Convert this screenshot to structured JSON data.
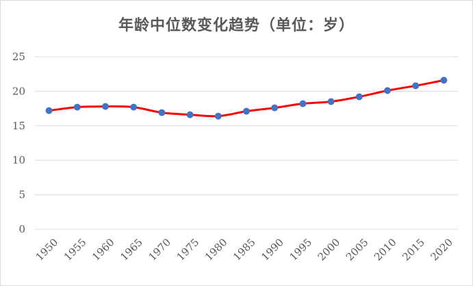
{
  "chart_data": {
    "type": "line",
    "title": "年龄中位数变化趋势（单位：岁）",
    "xlabel": "",
    "ylabel": "",
    "x": [
      "1950",
      "1955",
      "1960",
      "1965",
      "1970",
      "1975",
      "1980",
      "1985",
      "1990",
      "1995",
      "2000",
      "2005",
      "2010",
      "2015",
      "2020"
    ],
    "series": [
      {
        "values": [
          17.2,
          17.7,
          17.8,
          17.7,
          16.9,
          16.6,
          16.4,
          17.1,
          17.6,
          18.2,
          18.5,
          19.2,
          20.1,
          20.8,
          21.6
        ]
      }
    ],
    "yticks": [
      "0",
      "5",
      "10",
      "15",
      "20",
      "25"
    ],
    "ylim": [
      0,
      25
    ],
    "grid": true,
    "legend": "none",
    "line_color": "#ff0000",
    "marker_color": "#4472c4",
    "smooth": true
  }
}
